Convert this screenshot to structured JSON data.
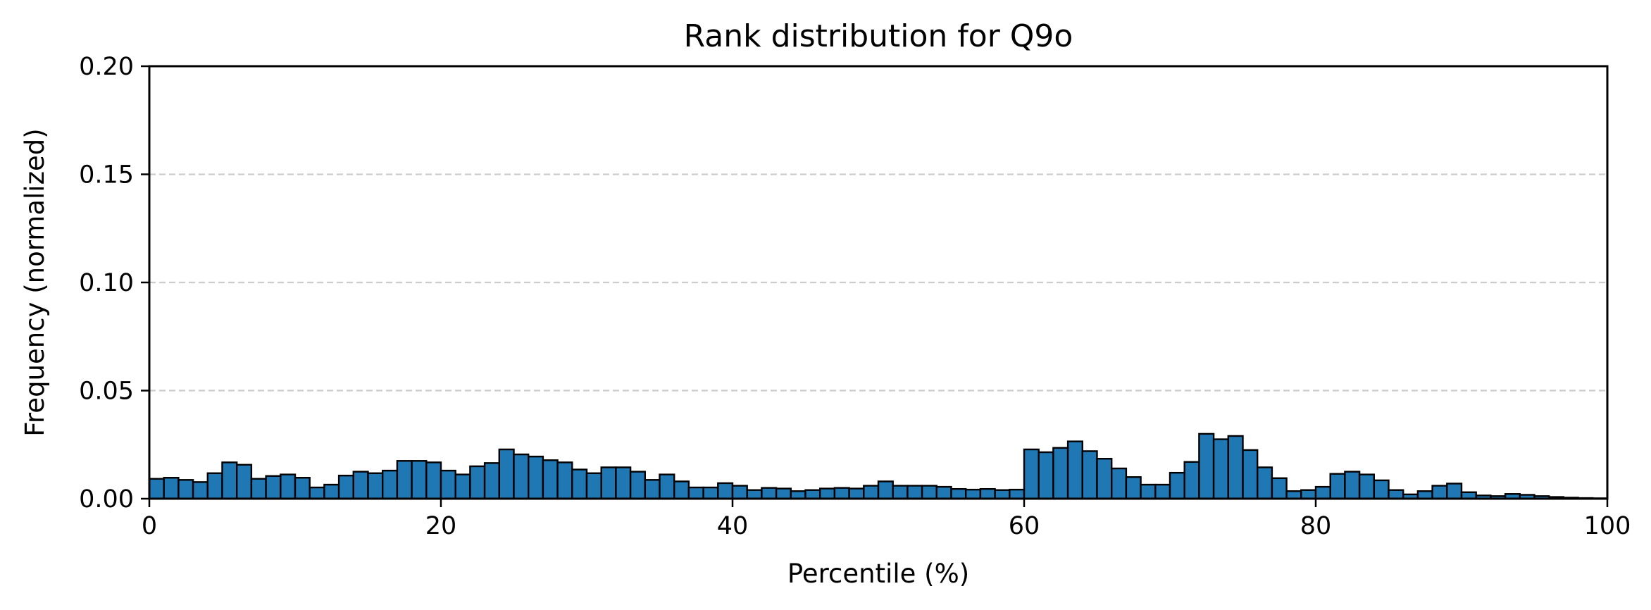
{
  "chart_data": {
    "type": "bar",
    "title": "Rank distribution for Q9o",
    "xlabel": "Percentile (%)",
    "ylabel": "Frequency (normalized)",
    "xlim": [
      0,
      100
    ],
    "ylim": [
      0,
      0.2
    ],
    "x_ticks": [
      "0",
      "20",
      "40",
      "60",
      "80",
      "100"
    ],
    "y_ticks": [
      "0.00",
      "0.05",
      "0.10",
      "0.15",
      "0.20"
    ],
    "grid": "horizontal dashed",
    "bar_color": "#1f77b4",
    "edge_color": "#000000",
    "bin_width": 1,
    "values": [
      0.0092,
      0.0097,
      0.0087,
      0.0077,
      0.0118,
      0.0168,
      0.0157,
      0.0092,
      0.0105,
      0.0112,
      0.0097,
      0.0052,
      0.0065,
      0.0107,
      0.0125,
      0.0118,
      0.013,
      0.0175,
      0.0175,
      0.0168,
      0.013,
      0.0112,
      0.015,
      0.0165,
      0.0228,
      0.0205,
      0.0195,
      0.0178,
      0.0168,
      0.0135,
      0.0118,
      0.0145,
      0.0145,
      0.0125,
      0.0087,
      0.0112,
      0.008,
      0.0052,
      0.0052,
      0.0072,
      0.006,
      0.004,
      0.005,
      0.0047,
      0.0035,
      0.004,
      0.0047,
      0.005,
      0.0047,
      0.006,
      0.008,
      0.006,
      0.006,
      0.006,
      0.0055,
      0.0045,
      0.0042,
      0.0045,
      0.004,
      0.0042,
      0.0228,
      0.0215,
      0.0235,
      0.0265,
      0.022,
      0.0185,
      0.014,
      0.01,
      0.0065,
      0.0065,
      0.012,
      0.017,
      0.03,
      0.0275,
      0.029,
      0.0225,
      0.0145,
      0.0095,
      0.0035,
      0.004,
      0.0055,
      0.0115,
      0.0125,
      0.0112,
      0.0085,
      0.004,
      0.002,
      0.0035,
      0.006,
      0.007,
      0.003,
      0.0015,
      0.0012,
      0.0022,
      0.0018,
      0.0012,
      0.0008,
      0.0005,
      0.0003,
      0.0002
    ]
  }
}
